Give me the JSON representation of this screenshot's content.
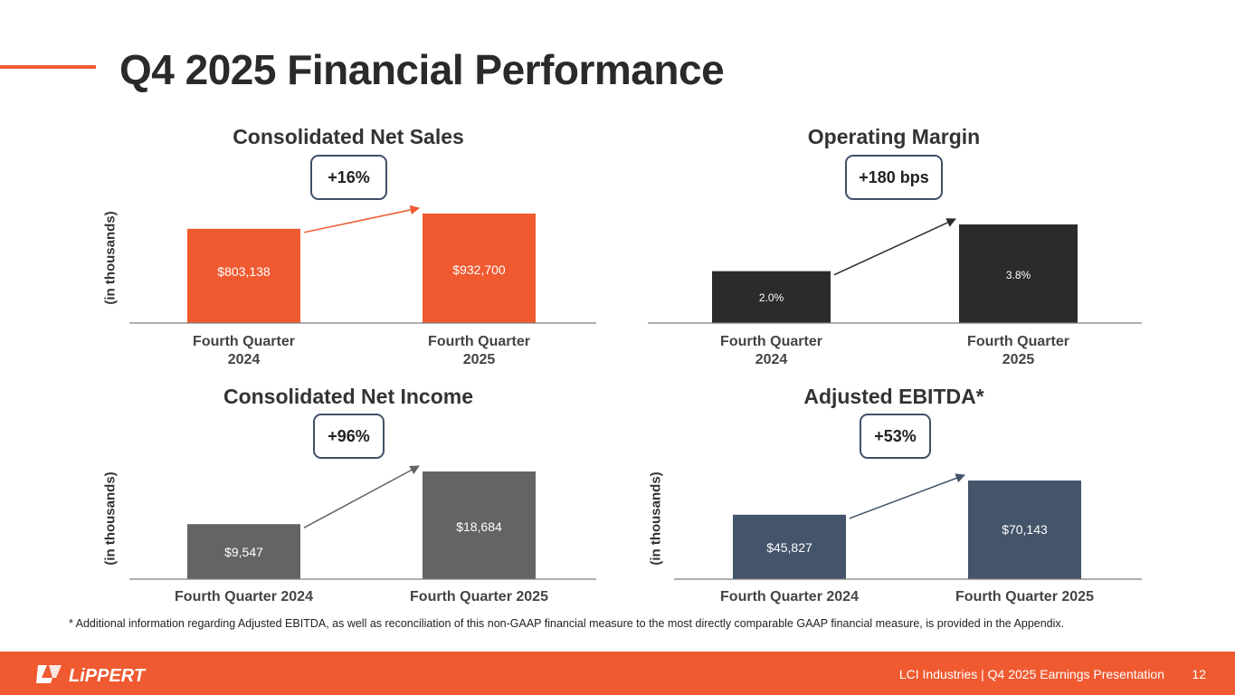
{
  "colors": {
    "accent": "#ef5a31",
    "dark": "#2b2b2b",
    "gray": "#646464",
    "navy": "#44546a",
    "badge_border": "#3f5068",
    "axis": "#7f7f7f"
  },
  "header": {
    "title": "Q4 2025 Financial Performance"
  },
  "chart_data": [
    {
      "type": "bar",
      "title": "Consolidated Net Sales",
      "badge": "+16%",
      "ylabel": "(in thousands)",
      "categories": [
        "Fourth Quarter 2024",
        "Fourth Quarter 2025"
      ],
      "values": [
        803138,
        932700
      ],
      "labels": [
        "$803,138",
        "$932,700"
      ],
      "ylim": [
        0,
        932700
      ],
      "color": "#ef5a31"
    },
    {
      "type": "bar",
      "title": "Operating Margin",
      "badge": "+180 bps",
      "ylabel": "",
      "categories": [
        "Fourth Quarter 2024",
        "Fourth Quarter 2025"
      ],
      "values": [
        2.0,
        3.8
      ],
      "labels": [
        "2.0%",
        "3.8%"
      ],
      "ylim": [
        0,
        3.8
      ],
      "color": "#2b2b2b"
    },
    {
      "type": "bar",
      "title": "Consolidated Net Income",
      "badge": "+96%",
      "ylabel": "(in thousands)",
      "categories": [
        "Fourth Quarter 2024",
        "Fourth Quarter 2025"
      ],
      "values": [
        9547,
        18684
      ],
      "labels": [
        "$9,547",
        "$18,684"
      ],
      "ylim": [
        0,
        18684
      ],
      "color": "#646464"
    },
    {
      "type": "bar",
      "title": "Adjusted EBITDA*",
      "badge": "+53%",
      "ylabel": "(in thousands)",
      "categories": [
        "Fourth Quarter 2024",
        "Fourth Quarter 2025"
      ],
      "values": [
        45827,
        70143
      ],
      "labels": [
        "$45,827",
        "$70,143"
      ],
      "ylim": [
        0,
        70143
      ],
      "color": "#44546a"
    }
  ],
  "footnote": "* Additional information regarding Adjusted EBITDA, as well as reconciliation of this non-GAAP financial measure to the most directly comparable GAAP financial measure, is provided in the Appendix.",
  "footer": {
    "logo_text": "LiPPERT",
    "text": "LCI Industries | Q4 2025 Earnings Presentation",
    "page": "12"
  }
}
